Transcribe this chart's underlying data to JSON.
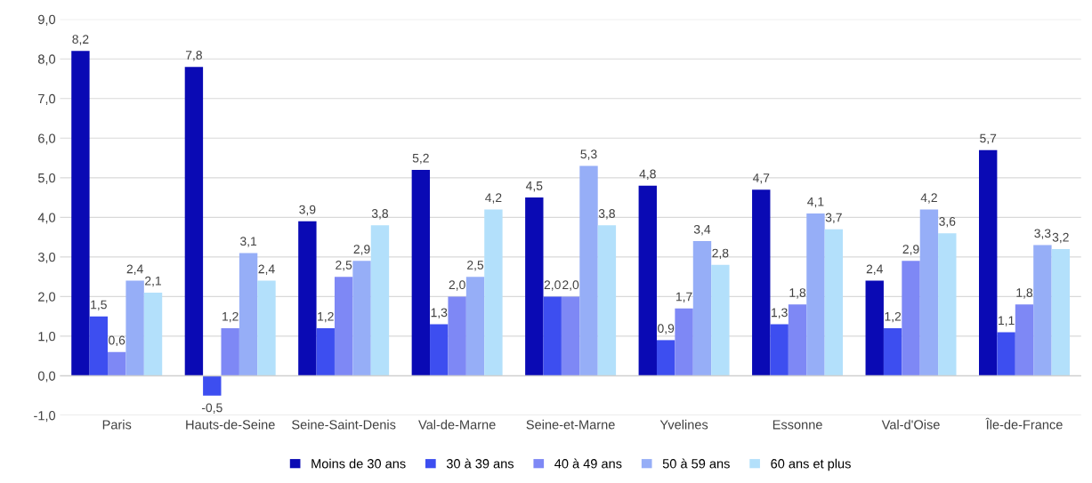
{
  "chart_data": {
    "type": "bar",
    "categories": [
      "Paris",
      "Hauts-de-Seine",
      "Seine-Saint-Denis",
      "Val-de-Marne",
      "Seine-et-Marne",
      "Yvelines",
      "Essonne",
      "Val-d'Oise",
      "Île-de-France"
    ],
    "series": [
      {
        "name": "Moins de 30 ans",
        "color": "#0a0ab4",
        "values": [
          8.2,
          7.8,
          3.9,
          5.2,
          4.5,
          4.8,
          4.7,
          2.4,
          5.7
        ],
        "value_labels": [
          "8,2",
          "7,8",
          "3,9",
          "5,2",
          "4,5",
          "4,8",
          "4,7",
          "2,4",
          "5,7"
        ]
      },
      {
        "name": "30 à 39 ans",
        "color": "#3d4ef0",
        "values": [
          1.5,
          -0.5,
          1.2,
          1.3,
          2.0,
          0.9,
          1.3,
          1.2,
          1.1
        ],
        "value_labels": [
          "1,5",
          "-0,5",
          "1,2",
          "1,3",
          "2,0",
          "0,9",
          "1,3",
          "1,2",
          "1,1"
        ]
      },
      {
        "name": "40 à 49 ans",
        "color": "#7e88f5",
        "values": [
          0.6,
          1.2,
          2.5,
          2.0,
          2.0,
          1.7,
          1.8,
          2.9,
          1.8
        ],
        "value_labels": [
          "0,6",
          "1,2",
          "2,5",
          "2,0",
          "2,0",
          "1,7",
          "1,8",
          "2,9",
          "1,8"
        ]
      },
      {
        "name": "50 à 59 ans",
        "color": "#96aef7",
        "values": [
          2.4,
          3.1,
          2.9,
          2.5,
          5.3,
          3.4,
          4.1,
          4.2,
          3.3
        ],
        "value_labels": [
          "2,4",
          "3,1",
          "2,9",
          "2,5",
          "5,3",
          "3,4",
          "4,1",
          "4,2",
          "3,3"
        ]
      },
      {
        "name": "60 ans et plus",
        "color": "#b3e0fb",
        "values": [
          2.1,
          2.4,
          3.8,
          4.2,
          3.8,
          2.8,
          3.7,
          3.6,
          3.2
        ],
        "value_labels": [
          "2,1",
          "2,4",
          "3,8",
          "4,2",
          "3,8",
          "2,8",
          "3,7",
          "3,6",
          "3,2"
        ]
      }
    ],
    "ylim": [
      -1,
      9
    ],
    "yticks": [
      {
        "value": -1,
        "label": "-1,0"
      },
      {
        "value": 0,
        "label": "0,0"
      },
      {
        "value": 1,
        "label": "1,0"
      },
      {
        "value": 2,
        "label": "2,0"
      },
      {
        "value": 3,
        "label": "3,0"
      },
      {
        "value": 4,
        "label": "4,0"
      },
      {
        "value": 5,
        "label": "5,0"
      },
      {
        "value": 6,
        "label": "6,0"
      },
      {
        "value": 7,
        "label": "7,0"
      },
      {
        "value": 8,
        "label": "8,0"
      },
      {
        "value": 9,
        "label": "9,0"
      }
    ],
    "grid": "y",
    "legend": "bottom"
  }
}
